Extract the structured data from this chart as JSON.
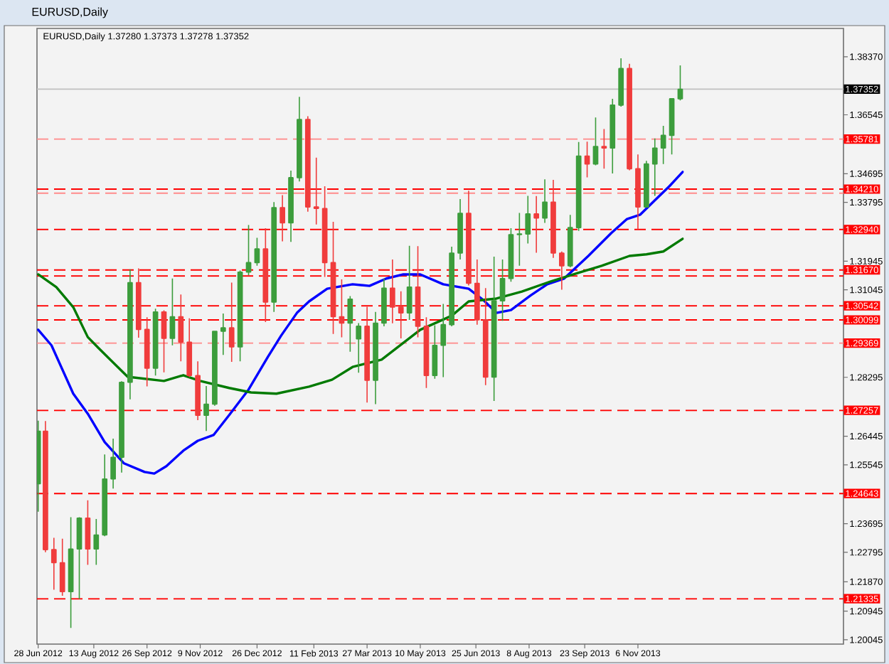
{
  "chart_data": {
    "type": "candlestick",
    "title": "EURUSD,Daily",
    "subtitle": "EURUSD,Daily  1.37280 1.37373 1.37278 1.37352",
    "x": [
      "2012-06-28",
      "2012-07-04",
      "2012-07-11",
      "2012-07-18",
      "2012-07-25",
      "2012-08-01",
      "2012-08-08",
      "2012-08-15",
      "2012-08-22",
      "2012-08-29",
      "2012-09-05",
      "2012-09-12",
      "2012-09-19",
      "2012-09-26",
      "2012-10-03",
      "2012-10-10",
      "2012-10-17",
      "2012-10-24",
      "2012-10-31",
      "2012-11-07",
      "2012-11-14",
      "2012-11-21",
      "2012-11-28",
      "2012-12-05",
      "2012-12-12",
      "2012-12-19",
      "2012-12-26",
      "2013-01-02",
      "2013-01-09",
      "2013-01-16",
      "2013-01-23",
      "2013-01-30",
      "2013-02-06",
      "2013-02-13",
      "2013-02-20",
      "2013-02-27",
      "2013-03-06",
      "2013-03-13",
      "2013-03-20",
      "2013-03-27",
      "2013-04-03",
      "2013-04-10",
      "2013-04-17",
      "2013-04-24",
      "2013-05-01",
      "2013-05-08",
      "2013-05-15",
      "2013-05-22",
      "2013-05-29",
      "2013-06-05",
      "2013-06-12",
      "2013-06-19",
      "2013-06-26",
      "2013-07-03",
      "2013-07-10",
      "2013-07-17",
      "2013-07-24",
      "2013-07-31",
      "2013-08-07",
      "2013-08-14",
      "2013-08-21",
      "2013-08-28",
      "2013-09-04",
      "2013-09-11",
      "2013-09-18",
      "2013-09-25",
      "2013-10-02",
      "2013-10-09",
      "2013-10-16",
      "2013-10-23",
      "2013-10-30",
      "2013-11-06",
      "2013-11-13",
      "2013-11-20",
      "2013-11-27",
      "2013-12-04",
      "2013-12-11"
    ],
    "ohlc": [
      [
        1.2495,
        1.2693,
        1.2407,
        1.266
      ],
      [
        1.266,
        1.2692,
        1.228,
        1.2288
      ],
      [
        1.2288,
        1.2325,
        1.2162,
        1.2247
      ],
      [
        1.2247,
        1.2322,
        1.2143,
        1.2156
      ],
      [
        1.2156,
        1.239,
        1.2042,
        1.229
      ],
      [
        1.229,
        1.239,
        1.2133,
        1.2387
      ],
      [
        1.2387,
        1.2443,
        1.224,
        1.229
      ],
      [
        1.229,
        1.2384,
        1.224,
        1.2334
      ],
      [
        1.2334,
        1.2587,
        1.233,
        1.251
      ],
      [
        1.251,
        1.2637,
        1.248,
        1.2578
      ],
      [
        1.2578,
        1.2817,
        1.253,
        1.2814
      ],
      [
        1.2814,
        1.3169,
        1.276,
        1.3127
      ],
      [
        1.3127,
        1.3172,
        1.2954,
        1.298
      ],
      [
        1.298,
        1.3018,
        1.2801,
        1.2858
      ],
      [
        1.2858,
        1.3045,
        1.2835,
        1.3035
      ],
      [
        1.3035,
        1.304,
        1.2845,
        1.2952
      ],
      [
        1.2952,
        1.314,
        1.293,
        1.302
      ],
      [
        1.302,
        1.309,
        1.288,
        1.294
      ],
      [
        1.294,
        1.3015,
        1.283,
        1.2835
      ],
      [
        1.2835,
        1.288,
        1.2695,
        1.271
      ],
      [
        1.271,
        1.2802,
        1.2661,
        1.2745
      ],
      [
        1.2745,
        1.2975,
        1.274,
        1.2974
      ],
      [
        1.2974,
        1.303,
        1.29,
        1.2985
      ],
      [
        1.2985,
        1.3127,
        1.2878,
        1.2925
      ],
      [
        1.2925,
        1.3165,
        1.288,
        1.316
      ],
      [
        1.316,
        1.3308,
        1.315,
        1.319
      ],
      [
        1.319,
        1.3268,
        1.318,
        1.3233
      ],
      [
        1.3233,
        1.3298,
        1.3003,
        1.3066
      ],
      [
        1.3066,
        1.338,
        1.3035,
        1.3363
      ],
      [
        1.3363,
        1.3402,
        1.3257,
        1.3315
      ],
      [
        1.3315,
        1.3479,
        1.3255,
        1.3457
      ],
      [
        1.3457,
        1.3711,
        1.3445,
        1.364
      ],
      [
        1.364,
        1.365,
        1.335,
        1.3365
      ],
      [
        1.3365,
        1.352,
        1.331,
        1.336
      ],
      [
        1.336,
        1.343,
        1.3145,
        1.319
      ],
      [
        1.319,
        1.3318,
        1.2966,
        1.302
      ],
      [
        1.302,
        1.3137,
        1.2955,
        1.3
      ],
      [
        1.3,
        1.3085,
        1.291,
        1.3075
      ],
      [
        1.295,
        1.3,
        1.2844,
        1.299
      ],
      [
        1.299,
        1.3051,
        1.275,
        1.282
      ],
      [
        1.282,
        1.3035,
        1.2745,
        1.3
      ],
      [
        1.3,
        1.314,
        1.299,
        1.311
      ],
      [
        1.311,
        1.32,
        1.2999,
        1.305
      ],
      [
        1.305,
        1.31,
        1.2952,
        1.3032
      ],
      [
        1.3032,
        1.3243,
        1.301,
        1.3113
      ],
      [
        1.3113,
        1.3242,
        1.2955,
        1.299
      ],
      [
        1.299,
        1.3018,
        1.2796,
        1.2835
      ],
      [
        1.2835,
        1.2993,
        1.2825,
        1.293
      ],
      [
        1.293,
        1.306,
        1.283,
        1.2995
      ],
      [
        1.2995,
        1.324,
        1.299,
        1.322
      ],
      [
        1.322,
        1.339,
        1.32,
        1.3345
      ],
      [
        1.3345,
        1.3416,
        1.3118,
        1.3125
      ],
      [
        1.3125,
        1.32,
        1.2995,
        1.301
      ],
      [
        1.301,
        1.311,
        1.2805,
        1.283
      ],
      [
        1.283,
        1.3209,
        1.2755,
        1.307
      ],
      [
        1.307,
        1.32,
        1.3007,
        1.314
      ],
      [
        1.314,
        1.3298,
        1.313,
        1.3278
      ],
      [
        1.3278,
        1.3346,
        1.318,
        1.328
      ],
      [
        1.328,
        1.34,
        1.325,
        1.3343
      ],
      [
        1.3343,
        1.3399,
        1.3221,
        1.333
      ],
      [
        1.333,
        1.3452,
        1.3315,
        1.338
      ],
      [
        1.338,
        1.345,
        1.3205,
        1.322
      ],
      [
        1.322,
        1.3225,
        1.3105,
        1.318
      ],
      [
        1.318,
        1.334,
        1.3175,
        1.33
      ],
      [
        1.33,
        1.3569,
        1.329,
        1.3525
      ],
      [
        1.3525,
        1.357,
        1.3458,
        1.35
      ],
      [
        1.35,
        1.3646,
        1.3496,
        1.3555
      ],
      [
        1.3555,
        1.361,
        1.3485,
        1.355
      ],
      [
        1.355,
        1.3705,
        1.347,
        1.3685
      ],
      [
        1.3685,
        1.3832,
        1.368,
        1.38
      ],
      [
        1.38,
        1.3815,
        1.348,
        1.3485
      ],
      [
        1.3485,
        1.353,
        1.3295,
        1.3365
      ],
      [
        1.3365,
        1.351,
        1.3365,
        1.35
      ],
      [
        1.35,
        1.358,
        1.34,
        1.355
      ],
      [
        1.355,
        1.362,
        1.35,
        1.359
      ],
      [
        1.359,
        1.3705,
        1.353,
        1.3705
      ],
      [
        1.3705,
        1.381,
        1.37,
        1.3735
      ]
    ],
    "colors": [
      "#3c9d3c",
      "#f03c3c",
      "#f03c3c",
      "#f03c3c",
      "#3c9d3c",
      "#3c9d3c",
      "#f03c3c",
      "#3c9d3c",
      "#3c9d3c",
      "#3c9d3c",
      "#3c9d3c",
      "#3c9d3c",
      "#f03c3c",
      "#f03c3c",
      "#3c9d3c",
      "#f03c3c",
      "#3c9d3c",
      "#f03c3c",
      "#f03c3c",
      "#f03c3c",
      "#3c9d3c",
      "#3c9d3c",
      "#3c9d3c",
      "#f03c3c",
      "#3c9d3c",
      "#3c9d3c",
      "#3c9d3c",
      "#f03c3c",
      "#3c9d3c",
      "#f03c3c",
      "#3c9d3c",
      "#3c9d3c",
      "#f03c3c",
      "#f03c3c",
      "#f03c3c",
      "#f03c3c",
      "#f03c3c",
      "#3c9d3c",
      "#3c9d3c",
      "#f03c3c",
      "#3c9d3c",
      "#3c9d3c",
      "#f03c3c",
      "#f03c3c",
      "#3c9d3c",
      "#f03c3c",
      "#f03c3c",
      "#3c9d3c",
      "#3c9d3c",
      "#3c9d3c",
      "#3c9d3c",
      "#f03c3c",
      "#f03c3c",
      "#f03c3c",
      "#3c9d3c",
      "#3c9d3c",
      "#3c9d3c",
      "#3c9d3c",
      "#3c9d3c",
      "#f03c3c",
      "#3c9d3c",
      "#f03c3c",
      "#f03c3c",
      "#3c9d3c",
      "#3c9d3c",
      "#f03c3c",
      "#3c9d3c",
      "#f03c3c",
      "#3c9d3c",
      "#3c9d3c",
      "#f03c3c",
      "#f03c3c",
      "#3c9d3c",
      "#3c9d3c",
      "#3c9d3c",
      "#3c9d3c",
      "#3c9d3c"
    ],
    "series": [
      {
        "type": "line",
        "color": "#0000ff",
        "x": [
          "2012-06-28",
          "2012-07-09",
          "2012-07-27",
          "2012-08-08",
          "2012-08-22",
          "2012-09-07",
          "2012-09-24",
          "2012-10-02",
          "2012-10-12",
          "2012-10-26",
          "2012-11-07",
          "2012-11-20",
          "2012-12-03",
          "2012-12-19",
          "2013-01-04",
          "2013-01-15",
          "2013-01-28",
          "2013-02-07",
          "2013-02-22",
          "2013-03-15",
          "2013-03-29",
          "2013-04-12",
          "2013-04-26",
          "2013-05-10",
          "2013-05-29",
          "2013-06-19",
          "2013-07-01",
          "2013-07-12",
          "2013-07-24",
          "2013-08-09",
          "2013-08-23",
          "2013-09-06",
          "2013-09-26",
          "2013-10-15",
          "2013-10-28",
          "2013-11-08",
          "2013-11-20",
          "2013-12-02",
          "2013-12-13"
        ],
        "values": [
          1.2979,
          1.293,
          1.2778,
          1.2715,
          1.2626,
          1.2559,
          1.2532,
          1.2527,
          1.255,
          1.2599,
          1.263,
          1.2648,
          1.2711,
          1.2791,
          1.2894,
          1.2961,
          1.3032,
          1.3068,
          1.3108,
          1.3122,
          1.3117,
          1.314,
          1.3153,
          1.3153,
          1.3122,
          1.3108,
          1.3073,
          1.3032,
          1.3041,
          1.3086,
          1.3122,
          1.314,
          1.3211,
          1.3283,
          1.3327,
          1.3341,
          1.3386,
          1.343,
          1.3475
        ]
      },
      {
        "type": "line",
        "color": "#007a00",
        "x": [
          "2012-06-28",
          "2012-07-13",
          "2012-07-27",
          "2012-08-08",
          "2012-08-17",
          "2012-09-10",
          "2012-10-10",
          "2012-10-26",
          "2012-11-09",
          "2012-12-03",
          "2012-12-21",
          "2013-01-11",
          "2013-02-07",
          "2013-02-26",
          "2013-03-15",
          "2013-04-08",
          "2013-05-10",
          "2013-06-05",
          "2013-06-19",
          "2013-07-12",
          "2013-08-02",
          "2013-08-26",
          "2013-09-18",
          "2013-10-07",
          "2013-10-30",
          "2013-11-13",
          "2013-11-27",
          "2013-12-13"
        ],
        "values": [
          1.3153,
          1.3113,
          1.305,
          1.2956,
          1.2921,
          1.2831,
          1.2818,
          1.2836,
          1.2818,
          1.2796,
          1.2782,
          1.2778,
          1.28,
          1.2822,
          1.2862,
          1.2885,
          1.2979,
          1.3023,
          1.3068,
          1.3077,
          1.3099,
          1.3131,
          1.3158,
          1.318,
          1.3211,
          1.3216,
          1.3225,
          1.3265
        ]
      }
    ],
    "xlim": [
      "2012-06-27",
      "2014-04-25"
    ],
    "xticks": [
      {
        "value": "2012-06-28",
        "label": "28 Jun 2012"
      },
      {
        "value": "2012-08-13",
        "label": "13 Aug 2012"
      },
      {
        "value": "2012-09-26",
        "label": "26 Sep 2012"
      },
      {
        "value": "2012-11-09",
        "label": "9 Nov 2012"
      },
      {
        "value": "2012-12-26",
        "label": "26 Dec 2012"
      },
      {
        "value": "2013-02-11",
        "label": "11 Feb 2013"
      },
      {
        "value": "2013-03-27",
        "label": "27 Mar 2013"
      },
      {
        "value": "2013-05-10",
        "label": "10 May 2013"
      },
      {
        "value": "2013-06-25",
        "label": "25 Jun 2013"
      },
      {
        "value": "2013-08-08",
        "label": "8 Aug 2013"
      },
      {
        "value": "2013-09-23",
        "label": "23 Sep 2013"
      },
      {
        "value": "2013-11-06",
        "label": "6 Nov 2013"
      }
    ],
    "ylim": [
      1.1991,
      1.3926
    ],
    "yticks": [
      {
        "value": 1.3837,
        "label": "1.38370"
      },
      {
        "value": 1.36545,
        "label": "1.36545"
      },
      {
        "value": 1.34695,
        "label": "1.34695"
      },
      {
        "value": 1.33795,
        "label": "1.33795"
      },
      {
        "value": 1.31945,
        "label": "1.31945"
      },
      {
        "value": 1.31045,
        "label": "1.31045"
      },
      {
        "value": 1.28295,
        "label": "1.28295"
      },
      {
        "value": 1.26445,
        "label": "1.26445"
      },
      {
        "value": 1.25545,
        "label": "1.25545"
      },
      {
        "value": 1.23695,
        "label": "1.23695"
      },
      {
        "value": 1.22795,
        "label": "1.22795"
      },
      {
        "value": 1.2187,
        "label": "1.21870"
      },
      {
        "value": 1.20945,
        "label": "1.20945"
      },
      {
        "value": 1.20045,
        "label": "1.20045"
      }
    ],
    "ref_lines": [
      {
        "axis": "y",
        "value": 1.37352,
        "label": "1.37352",
        "color": "#c0c0c0",
        "line_style": "solid"
      },
      {
        "axis": "y",
        "value": 1.35781,
        "label": "1.35781",
        "color": "#ff8c8c",
        "line_style": "dashed"
      },
      {
        "axis": "y",
        "value": 1.3421,
        "label": "1.34210",
        "color": "#ff0000",
        "line_style": "dashed"
      },
      {
        "axis": "y",
        "value": 1.3408,
        "color": "#ff8c8c",
        "line_style": "dashed"
      },
      {
        "axis": "y",
        "value": 1.3294,
        "label": "1.32940",
        "color": "#ff0000",
        "line_style": "dashed"
      },
      {
        "axis": "y",
        "value": 1.3167,
        "label": "1.31670",
        "color": "#ff0000",
        "line_style": "dashed"
      },
      {
        "axis": "y",
        "value": 1.3148,
        "color": "#ff0000",
        "line_style": "dashed"
      },
      {
        "axis": "y",
        "value": 1.30542,
        "label": "1.30542",
        "color": "#ff0000",
        "line_style": "dashed"
      },
      {
        "axis": "y",
        "value": 1.30099,
        "label": "1.30099",
        "color": "#ff0000",
        "line_style": "dashed"
      },
      {
        "axis": "y",
        "value": 1.29369,
        "label": "1.29369",
        "color": "#ff8c8c",
        "line_style": "dashed"
      },
      {
        "axis": "y",
        "value": 1.27257,
        "label": "1.27257",
        "color": "#ff0000",
        "line_style": "dashed"
      },
      {
        "axis": "y",
        "value": 1.24643,
        "label": "1.24643",
        "color": "#ff0000",
        "line_style": "dashed"
      },
      {
        "axis": "y",
        "value": 1.21335,
        "label": "1.21335",
        "color": "#ff0000",
        "line_style": "dashed"
      }
    ]
  }
}
